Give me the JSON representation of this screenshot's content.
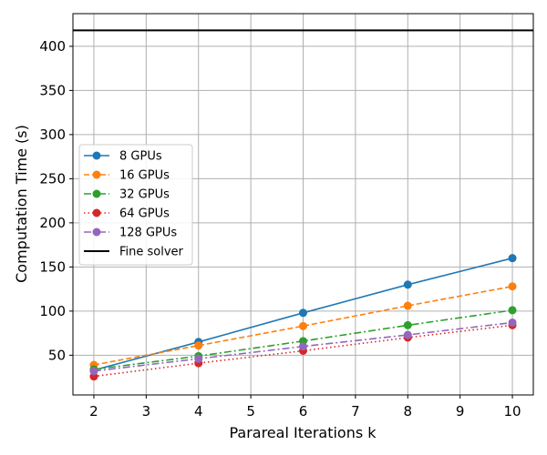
{
  "chart_data": {
    "type": "line",
    "title": "",
    "xlabel": "Parareal Iterations k",
    "ylabel": "Computation Time (s)",
    "xlim": [
      1.6,
      10.4
    ],
    "ylim": [
      5,
      437
    ],
    "grid": true,
    "legend_position": "center-left",
    "x_ticks": [
      2,
      3,
      4,
      5,
      6,
      7,
      8,
      9,
      10
    ],
    "y_ticks": [
      50,
      100,
      150,
      200,
      250,
      300,
      350,
      400
    ],
    "series": [
      {
        "name": "8 GPUs",
        "color": "#1f77b4",
        "line_style": "solid",
        "marker": "circle",
        "x": [
          2,
          4,
          6,
          8,
          10
        ],
        "values": [
          33,
          65,
          98,
          130,
          160
        ]
      },
      {
        "name": "16 GPUs",
        "color": "#ff7f0e",
        "line_style": "dashed",
        "marker": "circle",
        "x": [
          2,
          4,
          6,
          8,
          10
        ],
        "values": [
          39,
          61,
          83,
          106,
          128
        ]
      },
      {
        "name": "32 GPUs",
        "color": "#2ca02c",
        "line_style": "dashdot",
        "marker": "circle",
        "x": [
          2,
          4,
          6,
          8,
          10
        ],
        "values": [
          34,
          49,
          66,
          84,
          101
        ]
      },
      {
        "name": "64 GPUs",
        "color": "#d62728",
        "line_style": "dotted",
        "marker": "circle",
        "x": [
          2,
          4,
          6,
          8,
          10
        ],
        "values": [
          26,
          41,
          55,
          70,
          84
        ]
      },
      {
        "name": "128 GPUs",
        "color": "#9467bd",
        "line_style": "dashdot",
        "marker": "circle",
        "x": [
          2,
          4,
          6,
          8,
          10
        ],
        "values": [
          32,
          46,
          60,
          73,
          87
        ]
      }
    ],
    "reference_line": {
      "name": "Fine solver",
      "color": "#000000",
      "line_style": "solid",
      "value": 418
    }
  }
}
